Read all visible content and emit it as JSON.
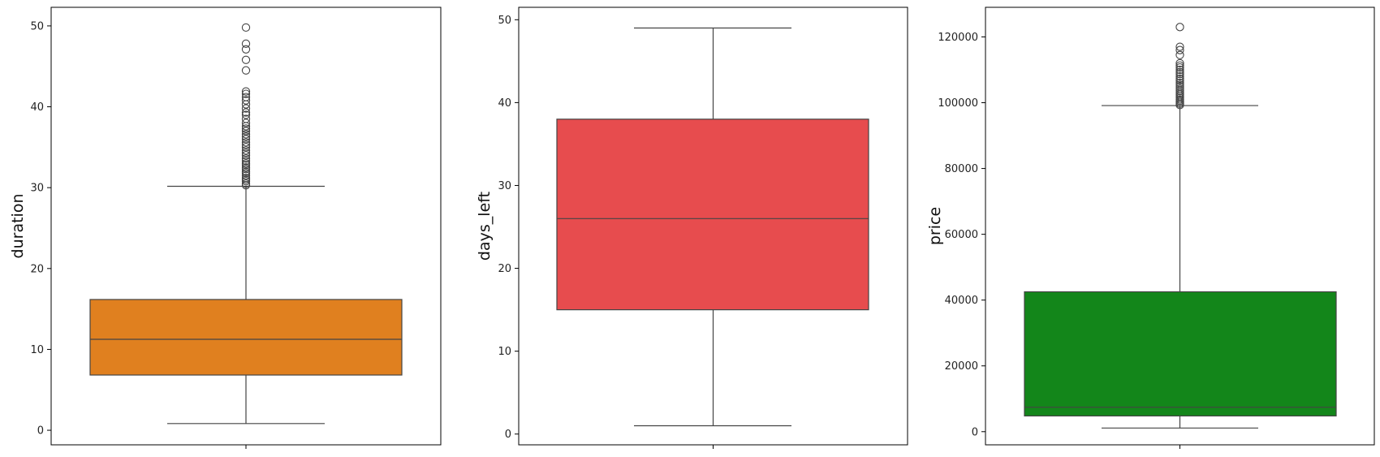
{
  "chart_data": [
    {
      "type": "box",
      "ylabel": "duration",
      "xlabel": "",
      "ylim": [
        -1.8,
        52.3
      ],
      "yticks": [
        0,
        10,
        20,
        30,
        40,
        50
      ],
      "color": "#e0801f",
      "box": {
        "whisker_low": 0.83,
        "q1": 6.83,
        "median": 11.25,
        "q3": 16.17,
        "whisker_high": 30.17
      },
      "outliers": [
        30.3,
        30.5,
        30.8,
        31.0,
        31.2,
        31.5,
        31.8,
        32.0,
        32.3,
        32.5,
        32.8,
        33.0,
        33.3,
        33.6,
        34.0,
        34.3,
        34.6,
        35.0,
        35.3,
        35.6,
        36.0,
        36.3,
        36.6,
        37.0,
        37.3,
        37.6,
        38.0,
        38.5,
        39.0,
        39.3,
        39.8,
        40.3,
        40.8,
        41.2,
        41.6,
        41.9,
        44.5,
        45.8,
        47.1,
        47.8,
        49.8
      ]
    },
    {
      "type": "box",
      "ylabel": "days_left",
      "xlabel": "",
      "ylim": [
        -1.3,
        51.5
      ],
      "yticks": [
        0,
        10,
        20,
        30,
        40,
        50
      ],
      "color": "#e74c4e",
      "box": {
        "whisker_low": 1,
        "q1": 15,
        "median": 26,
        "q3": 38,
        "whisker_high": 49
      },
      "outliers": []
    },
    {
      "type": "box",
      "ylabel": "price",
      "xlabel": "",
      "ylim": [
        -4000,
        129000
      ],
      "yticks": [
        0,
        20000,
        40000,
        60000,
        80000,
        100000,
        120000
      ],
      "color": "#13861a",
      "box": {
        "whisker_low": 1105,
        "q1": 4783,
        "median": 7425,
        "q3": 42521,
        "whisker_high": 99129
      },
      "outliers": [
        99300,
        99700,
        100200,
        100600,
        101000,
        101500,
        102000,
        102500,
        103000,
        103600,
        104200,
        104800,
        105400,
        106000,
        106700,
        107300,
        108000,
        108700,
        109300,
        110000,
        110700,
        111300,
        112000,
        114500,
        116000,
        117000,
        123000
      ]
    }
  ]
}
